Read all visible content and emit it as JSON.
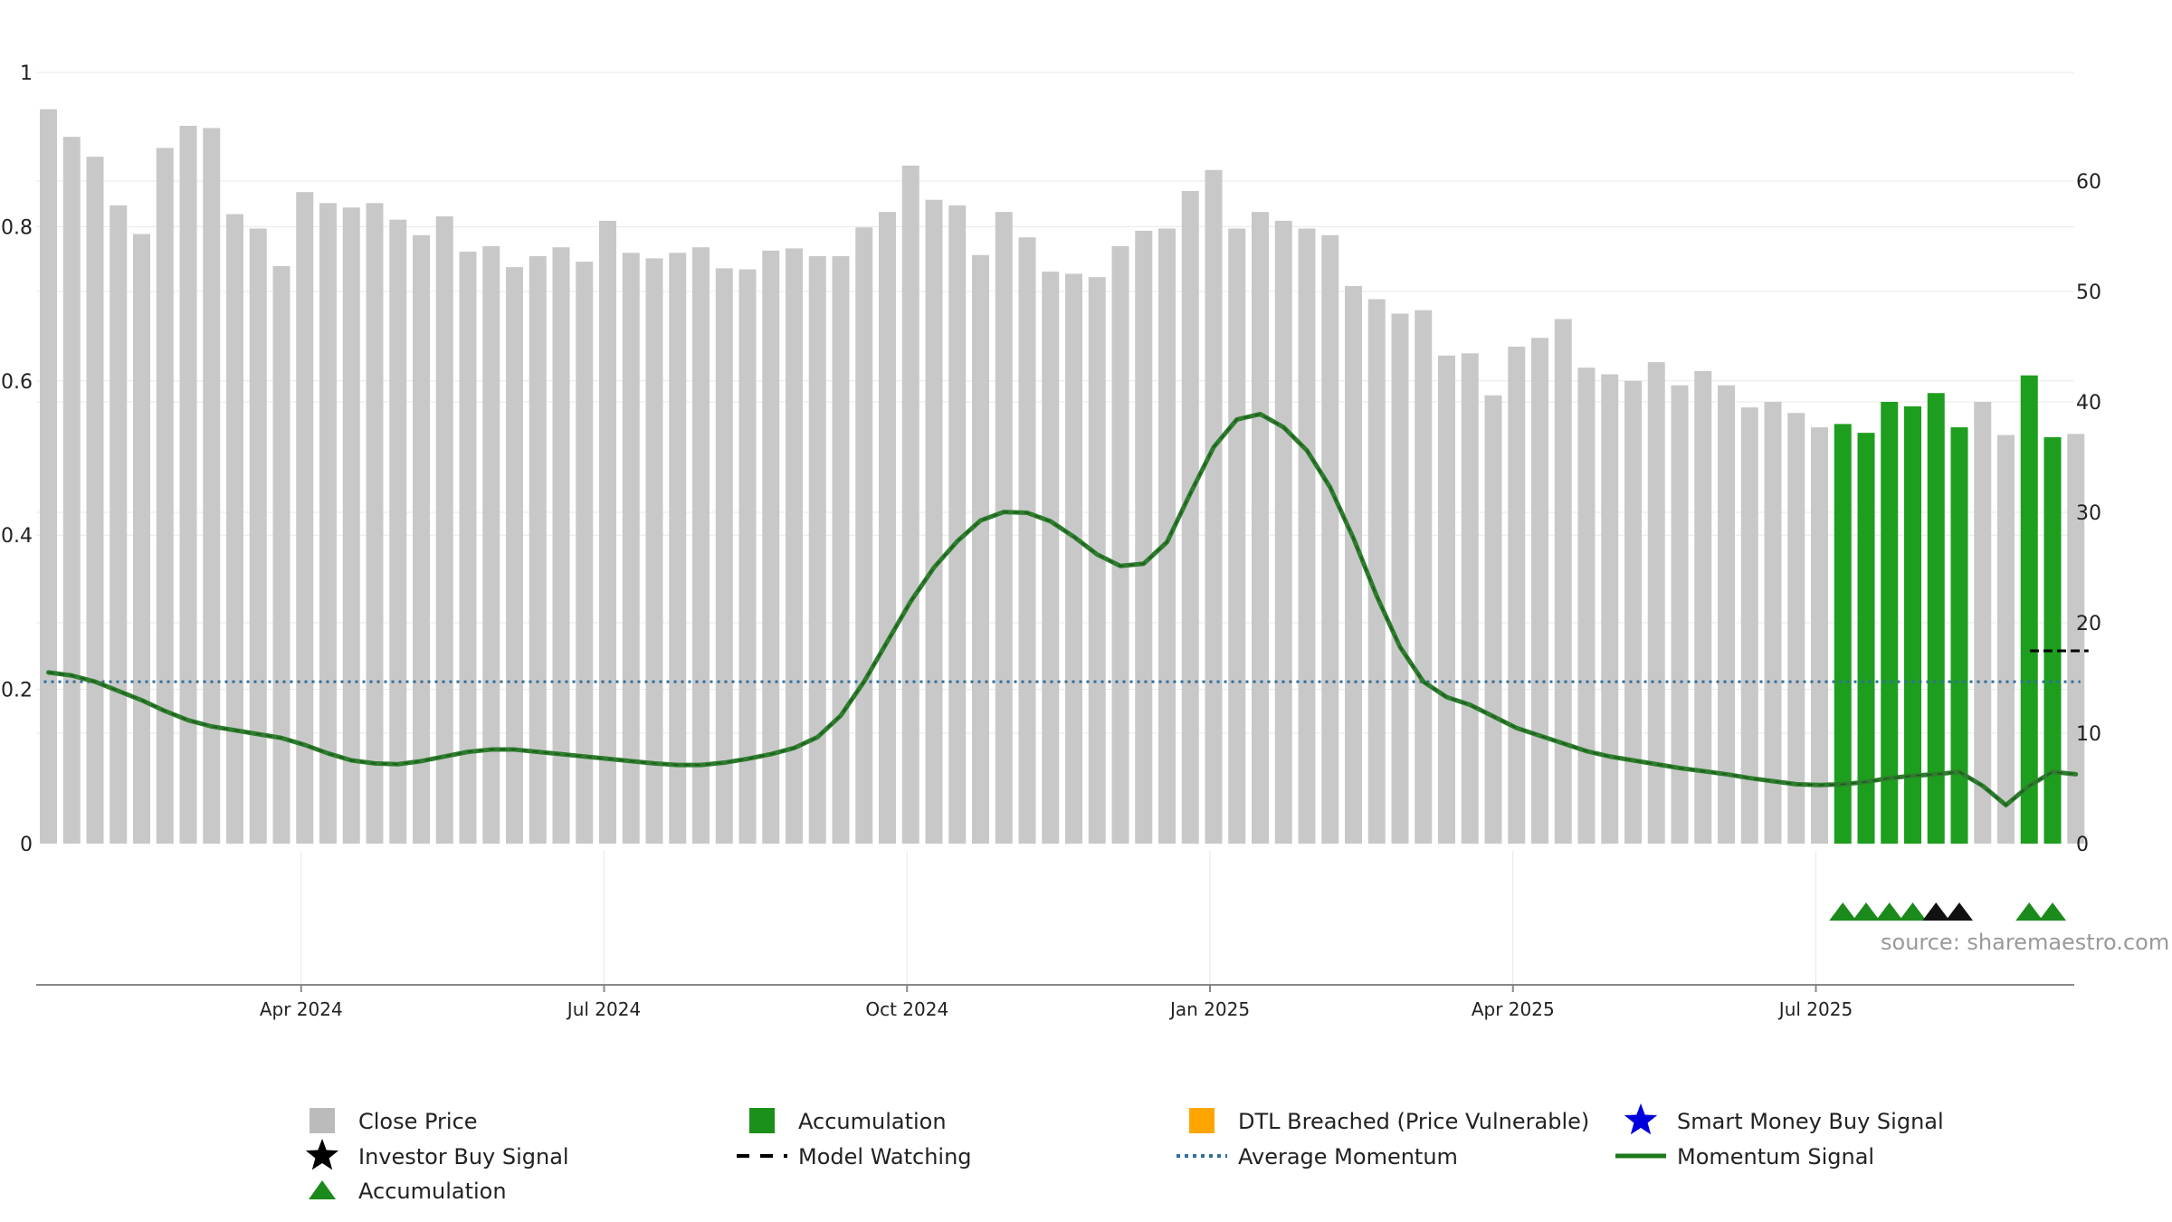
{
  "chart_data": {
    "type": "bar",
    "source_text": "source: sharemaestro.com",
    "y_left": {
      "range": [
        0,
        1
      ],
      "ticks": [
        "0",
        "0.2",
        "0.4",
        "0.6",
        "0.8",
        "1"
      ]
    },
    "y_right": {
      "range": [
        0,
        70
      ],
      "ticks": [
        "0",
        "10",
        "20",
        "30",
        "40",
        "50",
        "60"
      ]
    },
    "x_tick_labels": [
      "Apr 2024",
      "Jul 2024",
      "Oct 2024",
      "Jan 2025",
      "Apr 2025",
      "Jul 2025"
    ],
    "x_tick_bar_index": [
      11,
      24,
      37,
      50,
      63,
      76
    ],
    "close_price": [
      66.5,
      64.0,
      62.2,
      57.8,
      55.2,
      63.0,
      65.0,
      64.8,
      57.0,
      55.7,
      52.3,
      59.0,
      58.0,
      57.6,
      58.0,
      56.5,
      55.1,
      56.8,
      53.6,
      54.1,
      52.2,
      53.2,
      54.0,
      52.7,
      56.4,
      53.5,
      53.0,
      53.5,
      54.0,
      52.1,
      52.0,
      53.7,
      53.9,
      53.2,
      53.2,
      55.8,
      57.2,
      61.4,
      58.3,
      57.8,
      53.3,
      57.2,
      54.9,
      51.8,
      51.6,
      51.3,
      54.1,
      55.5,
      55.7,
      59.1,
      61.0,
      55.7,
      57.2,
      56.4,
      55.7,
      55.1,
      50.5,
      49.3,
      48.0,
      48.3,
      44.2,
      44.4,
      40.6,
      45.0,
      45.8,
      47.5,
      43.1,
      42.5,
      41.9,
      43.6,
      41.5,
      42.8,
      41.5,
      39.5,
      40.0,
      39.0,
      37.7,
      38.0,
      37.2,
      40.0,
      39.6,
      40.8,
      37.7,
      40.0,
      37.0,
      42.4,
      36.8,
      37.1
    ],
    "accumulation_bar_indices": [
      77,
      78,
      79,
      80,
      81,
      82,
      85,
      86
    ],
    "momentum_signal": [
      0.222,
      0.218,
      0.21,
      0.198,
      0.186,
      0.172,
      0.16,
      0.152,
      0.147,
      0.142,
      0.137,
      0.128,
      0.117,
      0.108,
      0.104,
      0.103,
      0.107,
      0.113,
      0.119,
      0.122,
      0.122,
      0.119,
      0.116,
      0.113,
      0.11,
      0.107,
      0.104,
      0.102,
      0.102,
      0.105,
      0.11,
      0.116,
      0.124,
      0.138,
      0.166,
      0.21,
      0.262,
      0.314,
      0.358,
      0.392,
      0.419,
      0.43,
      0.429,
      0.418,
      0.398,
      0.375,
      0.36,
      0.363,
      0.391,
      0.454,
      0.514,
      0.55,
      0.557,
      0.54,
      0.51,
      0.462,
      0.396,
      0.321,
      0.255,
      0.21,
      0.19,
      0.18,
      0.165,
      0.15,
      0.14,
      0.13,
      0.12,
      0.113,
      0.108,
      0.103,
      0.098,
      0.094,
      0.09,
      0.085,
      0.081,
      0.077,
      0.076,
      0.077,
      0.08,
      0.085,
      0.088,
      0.09,
      0.093,
      0.075,
      0.05,
      0.075,
      0.093,
      0.09
    ],
    "average_momentum": 0.21,
    "model_watching_level": 0.25,
    "model_watching_bars": [
      86,
      87
    ],
    "accumulation_triangles": [
      77,
      78,
      79,
      80,
      85,
      86
    ],
    "investor_buy_triangles": [
      81,
      82
    ],
    "legend": [
      {
        "label": "Close Price",
        "marker": "square",
        "color": "#bbbbbb"
      },
      {
        "label": "Accumulation",
        "marker": "square",
        "color": "#1a8f1a"
      },
      {
        "label": "DTL Breached (Price Vulnerable)",
        "marker": "square",
        "color": "#ffa500"
      },
      {
        "label": "Smart Money Buy Signal",
        "marker": "star",
        "color": "#0000dd"
      },
      {
        "label": "Investor Buy Signal",
        "marker": "star",
        "color": "#000000"
      },
      {
        "label": "Model Watching",
        "marker": "dash",
        "color": "#000000"
      },
      {
        "label": "Average Momentum",
        "marker": "dot",
        "color": "#2e6f9e"
      },
      {
        "label": "Momentum Signal",
        "marker": "line",
        "color": "#1a7a1a"
      },
      {
        "label": "Accumulation",
        "marker": "triangle",
        "color": "#1a8a1a"
      }
    ],
    "colors": {
      "close_bar": "#c8c8c8",
      "accumulation_bar": "#1e9e1e",
      "momentum_line": "#2e7d2e",
      "average_line": "#2e6f9e",
      "triangle_accumulation": "#1a8a1a",
      "triangle_investor": "#111111",
      "grid": "#e8e8e8",
      "axis": "#888888"
    }
  }
}
